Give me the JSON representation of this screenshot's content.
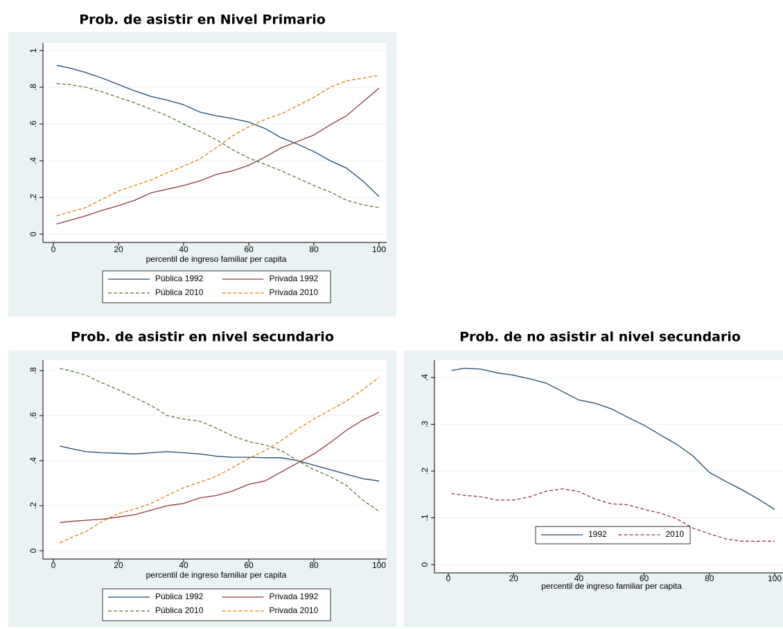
{
  "chart_data": [
    {
      "type": "line",
      "title": "Prob. de asistir en Nivel Primario",
      "xlabel": "percentil de ingreso familiar per capita",
      "x": [
        1,
        5,
        10,
        15,
        20,
        25,
        30,
        35,
        40,
        45,
        50,
        55,
        60,
        65,
        70,
        75,
        80,
        85,
        90,
        95,
        100
      ],
      "series": [
        {
          "name": "Pública 1992",
          "color": "#1a476f",
          "dash": false,
          "values": [
            0.92,
            0.905,
            0.88,
            0.85,
            0.815,
            0.78,
            0.75,
            0.73,
            0.705,
            0.665,
            0.645,
            0.63,
            0.61,
            0.575,
            0.525,
            0.49,
            0.45,
            0.4,
            0.36,
            0.29,
            0.205
          ]
        },
        {
          "name": "Privada 1992",
          "color": "#90353b",
          "dash": false,
          "values": [
            0.055,
            0.075,
            0.1,
            0.13,
            0.155,
            0.185,
            0.225,
            0.245,
            0.265,
            0.29,
            0.325,
            0.345,
            0.375,
            0.42,
            0.47,
            0.505,
            0.54,
            0.595,
            0.645,
            0.72,
            0.795
          ]
        },
        {
          "name": "Pública 2010",
          "color": "#55752f",
          "dash": true,
          "values": [
            0.82,
            0.815,
            0.8,
            0.775,
            0.745,
            0.715,
            0.68,
            0.645,
            0.6,
            0.56,
            0.515,
            0.46,
            0.415,
            0.38,
            0.345,
            0.305,
            0.265,
            0.23,
            0.185,
            0.16,
            0.145
          ]
        },
        {
          "name": "Privada 2010",
          "color": "#e37e00",
          "dash": true,
          "values": [
            0.1,
            0.12,
            0.145,
            0.19,
            0.235,
            0.265,
            0.295,
            0.335,
            0.37,
            0.41,
            0.47,
            0.535,
            0.585,
            0.625,
            0.655,
            0.7,
            0.745,
            0.8,
            0.835,
            0.85,
            0.865
          ]
        }
      ],
      "xlim": [
        0,
        100
      ],
      "xticks": [
        0,
        20,
        40,
        60,
        80,
        100
      ],
      "ylim": [
        0,
        1
      ],
      "yticks": [
        0,
        {
          "value": 0.2,
          "label": ".2"
        },
        {
          "value": 0.4,
          "label": ".4"
        },
        {
          "value": 0.6,
          "label": ".6"
        },
        {
          "value": 0.8,
          "label": ".8"
        },
        1
      ],
      "grid": true,
      "legend": "bottom"
    },
    {
      "type": "line",
      "title": "Prob. de asistir en nivel secundario",
      "xlabel": "percentil de ingreso familiar per capita",
      "x": [
        2,
        5,
        10,
        15,
        20,
        25,
        30,
        35,
        40,
        45,
        50,
        55,
        60,
        65,
        70,
        75,
        80,
        85,
        90,
        95,
        100
      ],
      "series": [
        {
          "name": "Pública 1992",
          "color": "#1a476f",
          "dash": false,
          "values": [
            0.465,
            0.455,
            0.44,
            0.435,
            0.433,
            0.43,
            0.435,
            0.44,
            0.435,
            0.43,
            0.42,
            0.415,
            0.415,
            0.413,
            0.413,
            0.4,
            0.38,
            0.36,
            0.34,
            0.32,
            0.31
          ]
        },
        {
          "name": "Privada 1992",
          "color": "#90353b",
          "dash": false,
          "values": [
            0.125,
            0.13,
            0.135,
            0.14,
            0.15,
            0.16,
            0.18,
            0.2,
            0.21,
            0.235,
            0.245,
            0.265,
            0.295,
            0.31,
            0.35,
            0.39,
            0.43,
            0.48,
            0.535,
            0.58,
            0.615
          ]
        },
        {
          "name": "Pública 2010",
          "color": "#55752f",
          "dash": true,
          "values": [
            0.81,
            0.8,
            0.78,
            0.745,
            0.715,
            0.68,
            0.645,
            0.6,
            0.585,
            0.575,
            0.545,
            0.51,
            0.485,
            0.47,
            0.445,
            0.4,
            0.36,
            0.33,
            0.29,
            0.225,
            0.175
          ]
        },
        {
          "name": "Privada 2010",
          "color": "#e37e00",
          "dash": true,
          "values": [
            0.035,
            0.055,
            0.085,
            0.13,
            0.165,
            0.185,
            0.21,
            0.245,
            0.28,
            0.305,
            0.33,
            0.37,
            0.41,
            0.445,
            0.49,
            0.54,
            0.585,
            0.625,
            0.665,
            0.715,
            0.77
          ]
        }
      ],
      "xlim": [
        0,
        100
      ],
      "xticks": [
        0,
        20,
        40,
        60,
        80,
        100
      ],
      "ylim": [
        0,
        0.8
      ],
      "yticks": [
        0,
        {
          "value": 0.2,
          "label": ".2"
        },
        {
          "value": 0.4,
          "label": ".4"
        },
        {
          "value": 0.6,
          "label": ".6"
        },
        {
          "value": 0.8,
          "label": ".8"
        }
      ],
      "grid": true,
      "legend": "bottom"
    },
    {
      "type": "line",
      "title": "Prob. de no asistir al nivel secundario",
      "xlabel": "percentil de ingreso familiar per capita",
      "x": [
        1,
        5,
        10,
        15,
        20,
        25,
        30,
        35,
        40,
        45,
        50,
        55,
        60,
        65,
        70,
        75,
        80,
        85,
        90,
        95,
        100
      ],
      "series": [
        {
          "name": "1992",
          "color": "#1a476f",
          "dash": false,
          "values": [
            0.415,
            0.42,
            0.418,
            0.41,
            0.405,
            0.397,
            0.388,
            0.37,
            0.352,
            0.345,
            0.333,
            0.315,
            0.298,
            0.277,
            0.257,
            0.232,
            0.197,
            0.178,
            0.16,
            0.14,
            0.118
          ]
        },
        {
          "name": "2010",
          "color": "#90353b",
          "dash": true,
          "values": [
            0.152,
            0.148,
            0.145,
            0.138,
            0.138,
            0.145,
            0.157,
            0.162,
            0.156,
            0.14,
            0.13,
            0.128,
            0.118,
            0.11,
            0.098,
            0.078,
            0.066,
            0.055,
            0.05,
            0.05,
            0.05
          ]
        }
      ],
      "xlim": [
        0,
        100
      ],
      "xticks": [
        0,
        20,
        40,
        60,
        80,
        100
      ],
      "ylim": [
        0,
        0.4
      ],
      "yticks": [
        0,
        {
          "value": 0.1,
          "label": ".1"
        },
        {
          "value": 0.2,
          "label": ".2"
        },
        {
          "value": 0.3,
          "label": ".3"
        },
        {
          "value": 0.4,
          "label": ".4"
        }
      ],
      "grid": true,
      "legend": "bottom"
    }
  ]
}
